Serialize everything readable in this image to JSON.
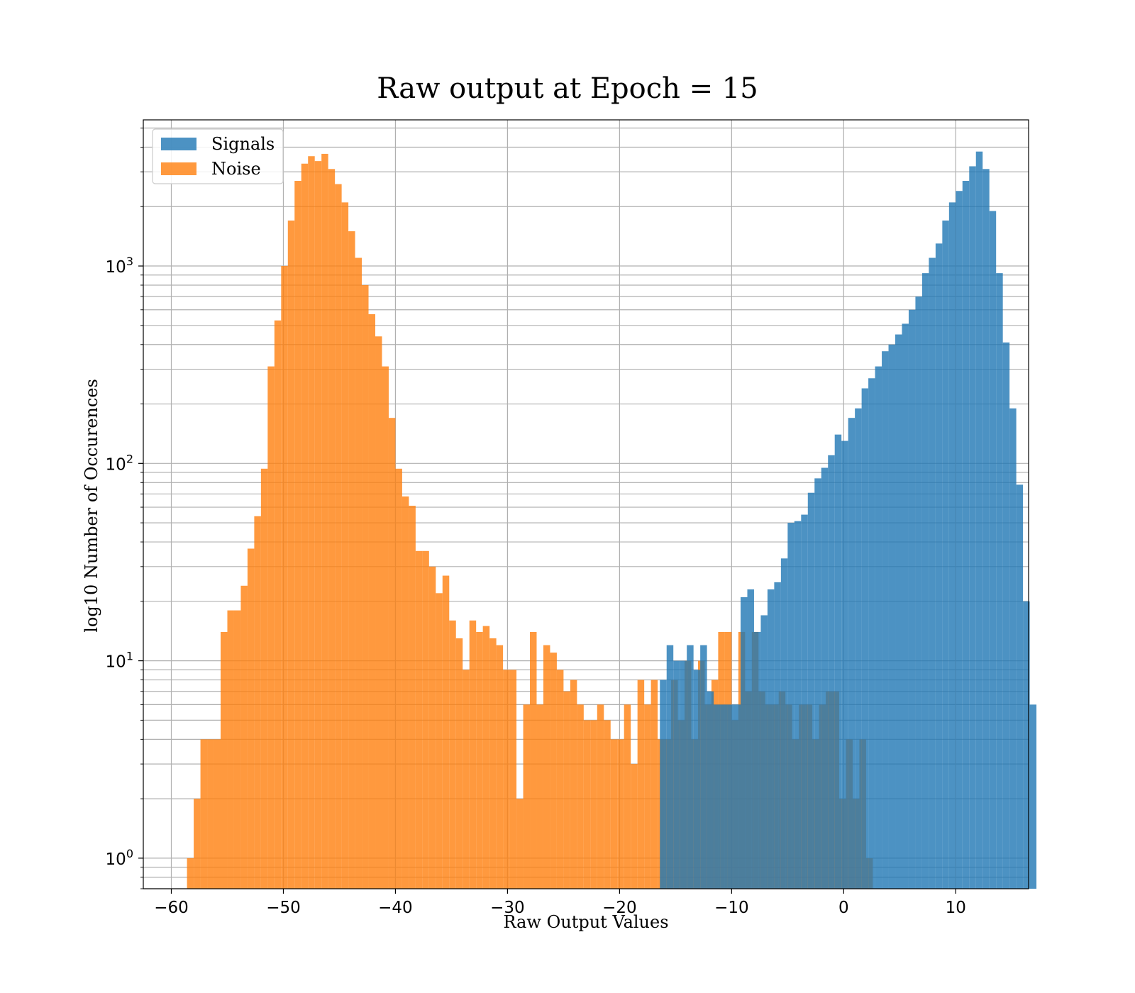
{
  "chart_data": {
    "type": "bar",
    "title": "Raw output at Epoch = 15",
    "xlabel": "Raw Output Values",
    "ylabel": "log10 Number of Occurences",
    "xlim": [
      -62.5,
      16.5
    ],
    "ylim": [
      0.7,
      5500
    ],
    "yscale": "log",
    "grid": true,
    "legend_position": "top-left",
    "x_ticks": [
      -60,
      -50,
      -40,
      -30,
      -20,
      -10,
      0,
      10
    ],
    "x_tick_labels": [
      "−60",
      "−50",
      "−40",
      "−30",
      "−20",
      "−10",
      "0",
      "10"
    ],
    "y_ticks": [
      {
        "value": 1,
        "base": "10",
        "exp": "0"
      },
      {
        "value": 10,
        "base": "10",
        "exp": "1"
      },
      {
        "value": 100,
        "base": "10",
        "exp": "2"
      },
      {
        "value": 1000,
        "base": "10",
        "exp": "3"
      }
    ],
    "series": [
      {
        "name": "Noise",
        "color": "#ff7f0e",
        "opacity": 0.8,
        "bin_start": -58.6,
        "bin_width": 0.6,
        "counts": [
          1,
          2,
          4,
          4,
          4,
          14,
          18,
          18,
          24,
          37,
          54,
          94,
          310,
          530,
          1000,
          1700,
          2700,
          3300,
          3600,
          3400,
          3700,
          3100,
          2600,
          2100,
          1500,
          1100,
          800,
          570,
          440,
          310,
          170,
          94,
          68,
          61,
          36,
          36,
          30,
          22,
          27,
          16,
          13,
          9,
          16,
          14,
          15,
          13,
          12,
          9,
          9,
          2,
          6,
          14,
          6,
          12,
          11,
          9,
          7,
          8,
          6,
          5,
          5,
          6,
          5,
          4,
          4,
          6,
          3,
          8,
          6,
          8,
          4,
          4,
          8,
          5,
          10,
          4,
          10,
          6,
          8,
          14,
          14,
          5,
          14,
          7,
          14,
          7,
          6,
          6,
          7,
          6,
          4,
          6,
          6,
          4,
          6,
          7,
          7,
          2,
          4,
          2,
          4,
          1
        ]
      },
      {
        "name": "Signals",
        "color": "#1f77b4",
        "opacity": 0.8,
        "bin_start": -16.4,
        "bin_width": 0.6,
        "counts": [
          8,
          12,
          10,
          10,
          12,
          9,
          12,
          7,
          6,
          6,
          6,
          6,
          21,
          23,
          14,
          17,
          23,
          25,
          33,
          50,
          51,
          55,
          71,
          84,
          95,
          110,
          140,
          130,
          170,
          190,
          240,
          270,
          310,
          370,
          400,
          450,
          510,
          600,
          700,
          920,
          1100,
          1300,
          1700,
          2100,
          2400,
          2700,
          3200,
          3800,
          3100,
          1900,
          920,
          410,
          190,
          78,
          20,
          6
        ]
      }
    ],
    "legend": [
      {
        "label": "Signals",
        "color": "#1f77b4"
      },
      {
        "label": "Noise",
        "color": "#ff7f0e"
      }
    ]
  }
}
